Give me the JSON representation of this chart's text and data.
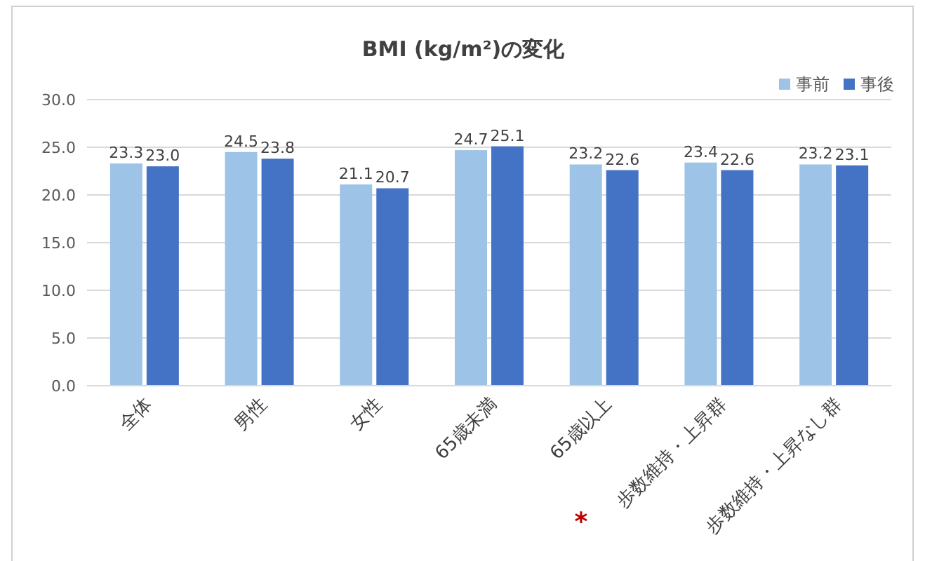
{
  "chart_data": {
    "type": "bar",
    "title": "BMI (kg/m²)の変化",
    "categories": [
      "全体",
      "男性",
      "女性",
      "65歳未満",
      "65歳以上",
      "歩数維持・上昇群",
      "歩数維持・上昇なし群"
    ],
    "series": [
      {
        "name": "事前",
        "color": "#9dc3e6",
        "values": [
          23.3,
          24.5,
          21.1,
          24.7,
          23.2,
          23.4,
          23.2
        ],
        "value_labels": [
          "23.3",
          "24.5",
          "21.1",
          "24.7",
          "23.2",
          "23.4",
          "23.2"
        ]
      },
      {
        "name": "事後",
        "color": "#4472c4",
        "values": [
          23.0,
          23.8,
          20.7,
          25.1,
          22.6,
          22.6,
          23.1
        ],
        "value_labels": [
          "23.0",
          "23.8",
          "20.7",
          "25.1",
          "22.6",
          "22.6",
          "23.1"
        ]
      }
    ],
    "ylim": [
      0,
      30
    ],
    "yticks": [
      {
        "value": 0,
        "label": "0.0"
      },
      {
        "value": 5,
        "label": "5.0"
      },
      {
        "value": 10,
        "label": "10.0"
      },
      {
        "value": 15,
        "label": "15.0"
      },
      {
        "value": 20,
        "label": "20.0"
      },
      {
        "value": 25,
        "label": "25.0"
      },
      {
        "value": 30,
        "label": "30.0"
      }
    ],
    "grid": "y",
    "legend": "top right",
    "annotations": [
      "*"
    ]
  }
}
